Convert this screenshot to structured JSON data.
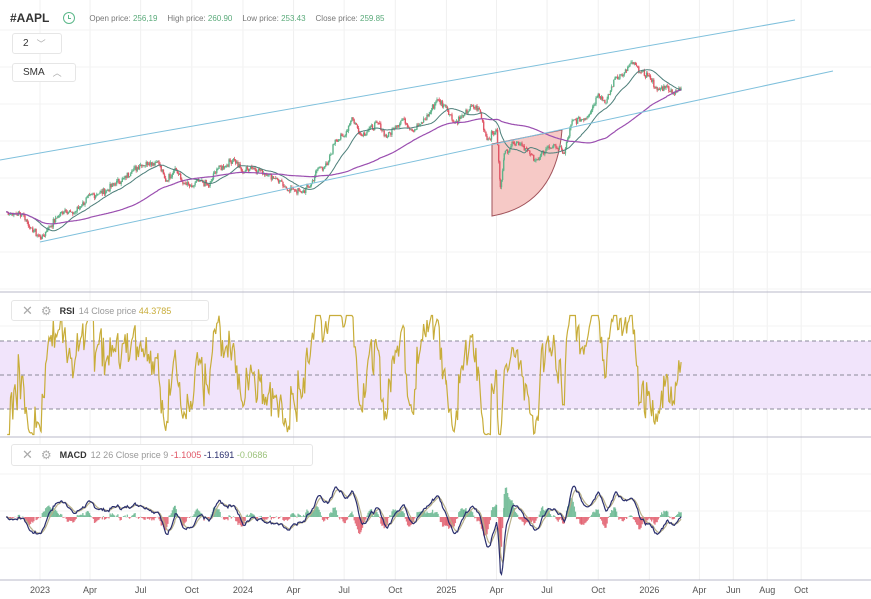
{
  "header": {
    "symbol": "#AAPL",
    "clock_icon": "clock-icon",
    "open_label": "Open price:",
    "open": "256,19",
    "high_label": "High price:",
    "high": "260.90",
    "low_label": "Low price:",
    "low": "253.43",
    "close_label": "Close price:",
    "close": "259.85"
  },
  "controls": {
    "period": "2",
    "indicator": "SMA"
  },
  "rsi": {
    "name": "RSI",
    "params": "14 Close price",
    "value": "44.3785"
  },
  "macd": {
    "name": "MACD",
    "params": "12 26 Close price 9",
    "macd": "-1.1005",
    "signal": "-1.1691",
    "hist": "-0.0686"
  },
  "colors": {
    "up": "#5fb38a",
    "down": "#e05565",
    "rsi_line": "#c8ad3a",
    "rsi_band": "#f1e4fb",
    "sma_fast": "#4d7f7a",
    "sma_slow": "#9b4fb0",
    "channel": "#7fc0dc",
    "macd_line": "#2a2f6e",
    "signal_line": "#b8b08a",
    "shape_fill": "#f6c9c6",
    "shape_stroke": "#a0525a"
  },
  "chart_data": {
    "type": "candlestick",
    "symbol": "AAPL",
    "x_ticks": [
      "2023",
      "Apr",
      "Jul",
      "Oct",
      "2024",
      "Apr",
      "Jul",
      "Oct",
      "2025",
      "Apr",
      "Jul",
      "Oct",
      "2026",
      "Apr",
      "Jun",
      "Aug",
      "Oct"
    ],
    "x_tick_dates": [
      "2023-01-01",
      "2023-04-01",
      "2023-07-01",
      "2023-10-01",
      "2024-01-01",
      "2024-04-01",
      "2024-07-01",
      "2024-10-01",
      "2025-01-01",
      "2025-04-01",
      "2025-07-01",
      "2025-10-01",
      "2026-01-01",
      "2026-04-01",
      "2026-06-01",
      "2026-08-01",
      "2026-10-01"
    ],
    "close": [
      [
        "2022-11-01",
        150
      ],
      [
        "2022-11-15",
        148
      ],
      [
        "2022-12-01",
        148
      ],
      [
        "2022-12-15",
        136
      ],
      [
        "2023-01-03",
        126
      ],
      [
        "2023-01-15",
        135
      ],
      [
        "2023-02-01",
        145
      ],
      [
        "2023-02-15",
        152
      ],
      [
        "2023-03-01",
        148
      ],
      [
        "2023-03-15",
        155
      ],
      [
        "2023-04-01",
        165
      ],
      [
        "2023-04-15",
        166
      ],
      [
        "2023-05-01",
        169
      ],
      [
        "2023-05-15",
        175
      ],
      [
        "2023-06-01",
        180
      ],
      [
        "2023-06-15",
        186
      ],
      [
        "2023-07-01",
        192
      ],
      [
        "2023-07-15",
        193
      ],
      [
        "2023-08-01",
        195
      ],
      [
        "2023-08-15",
        177
      ],
      [
        "2023-09-01",
        189
      ],
      [
        "2023-09-15",
        175
      ],
      [
        "2023-10-01",
        172
      ],
      [
        "2023-10-15",
        178
      ],
      [
        "2023-11-01",
        173
      ],
      [
        "2023-11-15",
        188
      ],
      [
        "2023-12-01",
        191
      ],
      [
        "2023-12-15",
        197
      ],
      [
        "2024-01-01",
        185
      ],
      [
        "2024-01-15",
        190
      ],
      [
        "2024-02-01",
        187
      ],
      [
        "2024-02-15",
        183
      ],
      [
        "2024-03-01",
        180
      ],
      [
        "2024-03-15",
        172
      ],
      [
        "2024-04-01",
        170
      ],
      [
        "2024-04-15",
        167
      ],
      [
        "2024-05-01",
        173
      ],
      [
        "2024-05-15",
        189
      ],
      [
        "2024-06-01",
        192
      ],
      [
        "2024-06-15",
        214
      ],
      [
        "2024-07-01",
        217
      ],
      [
        "2024-07-15",
        234
      ],
      [
        "2024-08-01",
        218
      ],
      [
        "2024-08-15",
        224
      ],
      [
        "2024-09-01",
        229
      ],
      [
        "2024-09-15",
        216
      ],
      [
        "2024-10-01",
        226
      ],
      [
        "2024-10-15",
        233
      ],
      [
        "2024-11-01",
        222
      ],
      [
        "2024-11-15",
        228
      ],
      [
        "2024-12-01",
        237
      ],
      [
        "2024-12-15",
        250
      ],
      [
        "2025-01-01",
        243
      ],
      [
        "2025-01-15",
        229
      ],
      [
        "2025-02-01",
        236
      ],
      [
        "2025-02-15",
        244
      ],
      [
        "2025-03-01",
        241
      ],
      [
        "2025-03-15",
        214
      ],
      [
        "2025-04-01",
        223
      ],
      [
        "2025-04-08",
        172
      ],
      [
        "2025-04-15",
        202
      ],
      [
        "2025-05-01",
        212
      ],
      [
        "2025-05-15",
        211
      ],
      [
        "2025-06-01",
        201
      ],
      [
        "2025-06-15",
        196
      ],
      [
        "2025-07-01",
        207
      ],
      [
        "2025-07-15",
        209
      ],
      [
        "2025-08-01",
        202
      ],
      [
        "2025-08-15",
        231
      ],
      [
        "2025-09-01",
        232
      ],
      [
        "2025-09-15",
        237
      ],
      [
        "2025-10-01",
        255
      ],
      [
        "2025-10-15",
        247
      ],
      [
        "2025-11-01",
        270
      ],
      [
        "2025-11-15",
        272
      ],
      [
        "2025-12-01",
        283
      ],
      [
        "2025-12-15",
        274
      ],
      [
        "2026-01-01",
        271
      ],
      [
        "2026-01-15",
        258
      ],
      [
        "2026-02-01",
        262
      ],
      [
        "2026-02-15",
        255
      ],
      [
        "2026-02-27",
        259.85
      ]
    ],
    "overlays": [
      "SMA",
      "SMA",
      "channel lines",
      "sector shape"
    ],
    "rsi_levels": [
      30,
      50,
      70
    ],
    "grid": true
  }
}
